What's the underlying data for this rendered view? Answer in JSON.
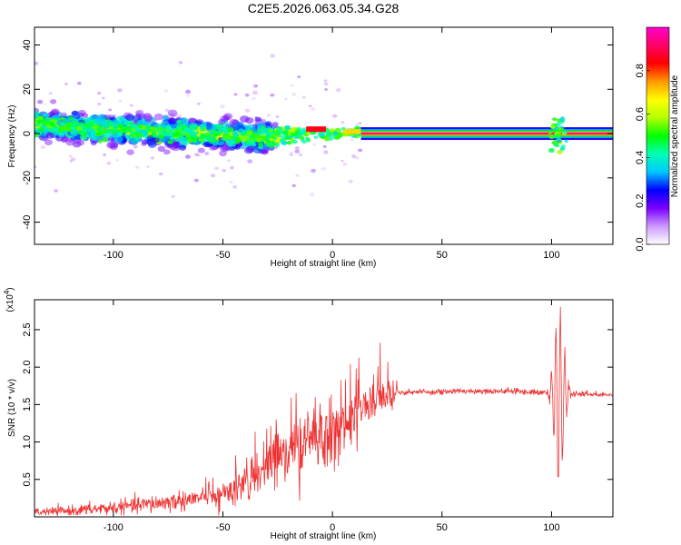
{
  "title": "C2E5.2026.063.05.34.G28",
  "chart_data": [
    {
      "type": "heatmap",
      "name": "spectrogram",
      "xlabel": "Height of straight line (km)",
      "ylabel": "Frequency (Hz)",
      "xlim": [
        -136,
        128
      ],
      "ylim": [
        -50,
        48
      ],
      "xticks": [
        -100,
        -50,
        0,
        50,
        100
      ],
      "yticks": [
        -40,
        -20,
        0,
        20,
        40
      ],
      "xtick_labels": [
        "-100",
        "-50",
        "0",
        "50",
        "100"
      ],
      "ytick_labels": [
        "-40",
        "-20",
        "0",
        "20",
        "40"
      ],
      "colorbar": {
        "label": "Normalized spectral amplitude",
        "range": [
          0,
          1
        ],
        "ticks": [
          0.0,
          0.2,
          0.4,
          0.6,
          0.8
        ],
        "tick_labels": [
          "0.0",
          "0.2",
          "0.4",
          "0.6",
          "0.8"
        ],
        "colors": [
          "#ffffff",
          "#cc99ff",
          "#7a00ff",
          "#0000ff",
          "#00c8ff",
          "#00ffb4",
          "#00ff00",
          "#b4ff00",
          "#ffff00",
          "#ff9900",
          "#ff0000",
          "#ff0066",
          "#ff00cc"
        ]
      },
      "features": {
        "carrier_start_km": 13,
        "carrier_end_km": 128,
        "carrier_freq_hz": 0,
        "scatter_drift": {
          "start_km": -136,
          "start_freq_hz": 4,
          "end_km": -25,
          "end_freq_hz": -2
        },
        "burst_km": 103
      }
    },
    {
      "type": "line",
      "name": "snr",
      "xlabel": "Height of straight line (km)",
      "ylabel": "SNR (10 * v/v)",
      "y_exponent_label": "(x10",
      "y_exponent_power": "4",
      "y_exponent_close": ")",
      "xlim": [
        -136,
        128
      ],
      "ylim": [
        0,
        2.9
      ],
      "xticks": [
        -100,
        -50,
        0,
        50,
        100
      ],
      "yticks": [
        0.5,
        1.0,
        1.5,
        2.0,
        2.5
      ],
      "xtick_labels": [
        "-100",
        "-50",
        "0",
        "50",
        "100"
      ],
      "ytick_labels": [
        "0.5",
        "1.0",
        "1.5",
        "2.0",
        "2.5"
      ],
      "color": "#ee3333",
      "envelope": {
        "x": [
          -136,
          -120,
          -100,
          -80,
          -60,
          -50,
          -40,
          -30,
          -20,
          -10,
          -5,
          0,
          5,
          10,
          15,
          20,
          25,
          30,
          40,
          50,
          60,
          70,
          80,
          90,
          95,
          98,
          100,
          102,
          104,
          106,
          108,
          110,
          115,
          120,
          128
        ],
        "y": [
          0.06,
          0.08,
          0.12,
          0.18,
          0.25,
          0.3,
          0.45,
          0.65,
          0.85,
          1.0,
          1.05,
          1.1,
          1.22,
          1.35,
          1.48,
          1.56,
          1.62,
          1.66,
          1.67,
          1.67,
          1.68,
          1.68,
          1.68,
          1.67,
          1.66,
          1.66,
          1.65,
          1.6,
          1.55,
          1.62,
          1.64,
          1.64,
          1.64,
          1.63,
          1.63
        ]
      }
    }
  ]
}
